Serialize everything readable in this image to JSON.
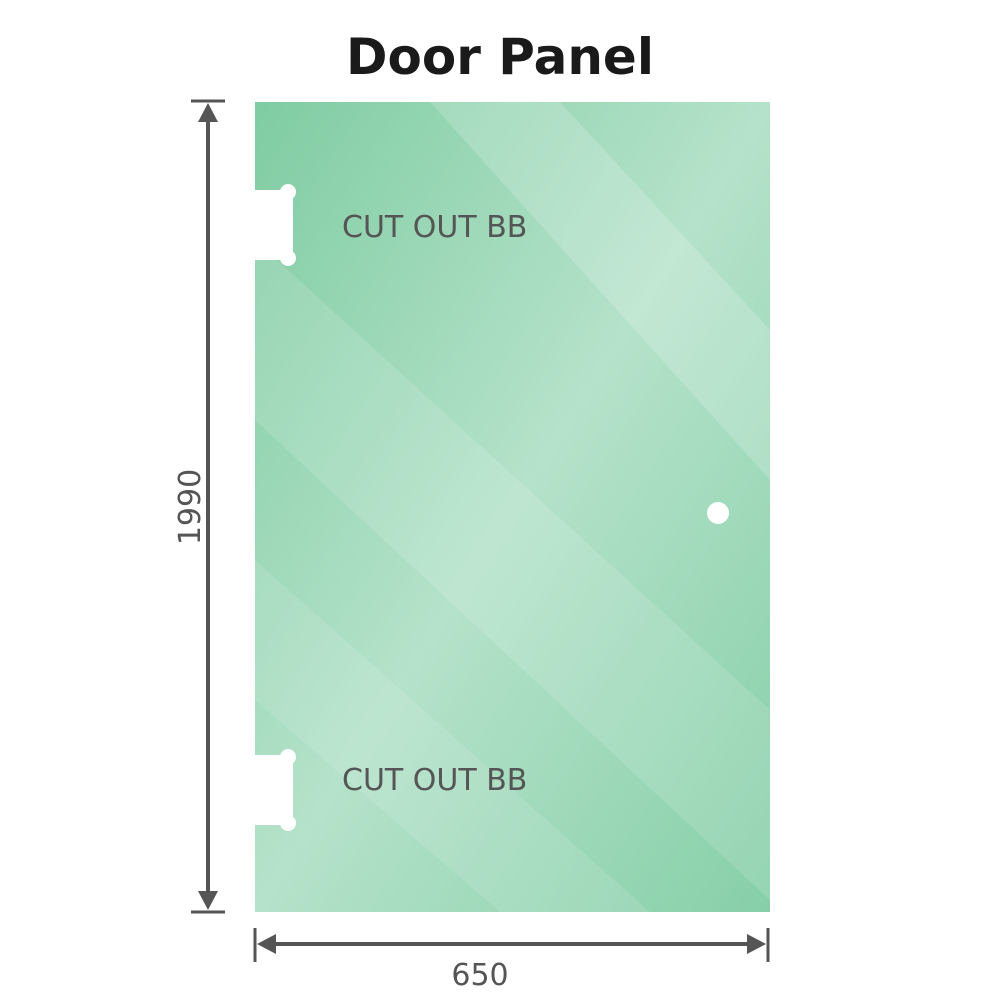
{
  "title": "Door Panel",
  "dimensions": {
    "height": "1990",
    "width": "650"
  },
  "cutouts": [
    {
      "label": "CUT OUT BB"
    },
    {
      "label": "CUT OUT BB"
    }
  ],
  "colors": {
    "glass": "#86cfa8",
    "glass_light": "#b8e3cc",
    "dimension_line": "#555555",
    "text": "#555555"
  }
}
